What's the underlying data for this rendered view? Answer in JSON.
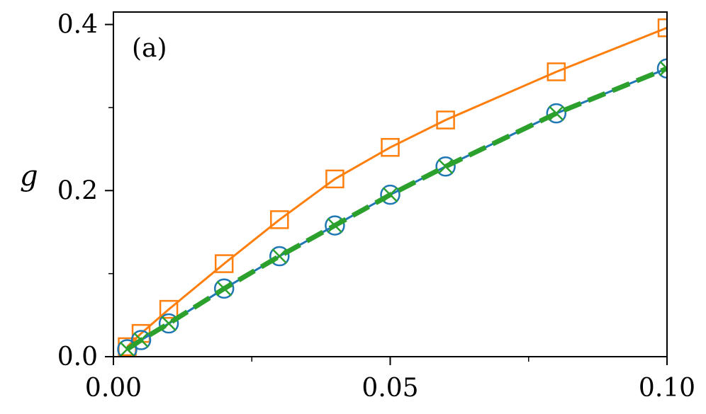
{
  "chart_data": {
    "type": "line",
    "panel_label": "(a)",
    "xlabel": "",
    "ylabel": "g",
    "xlim": [
      0.0,
      0.1
    ],
    "ylim": [
      0.0,
      0.415
    ],
    "xticks": [
      {
        "value": 0.0,
        "label": "0.00"
      },
      {
        "value": 0.05,
        "label": "0.05"
      },
      {
        "value": 0.1,
        "label": "0.10"
      }
    ],
    "xminor": [
      0.025,
      0.075
    ],
    "yticks": [
      {
        "value": 0.0,
        "label": "0.0"
      },
      {
        "value": 0.2,
        "label": "0.2"
      },
      {
        "value": 0.4,
        "label": "0.4"
      }
    ],
    "yminor": [
      0.1,
      0.3
    ],
    "grid": false,
    "series": [
      {
        "color": "#ff7f0e",
        "line": "solid",
        "marker": "square",
        "x": [
          0.0025,
          0.005,
          0.01,
          0.02,
          0.03,
          0.04,
          0.05,
          0.06,
          0.08,
          0.1
        ],
        "y": [
          0.012,
          0.028,
          0.057,
          0.112,
          0.165,
          0.214,
          0.252,
          0.285,
          0.343,
          0.396
        ]
      },
      {
        "color": "#1f77b4",
        "line": "solid",
        "marker": "circle",
        "x": [
          0.0025,
          0.005,
          0.01,
          0.02,
          0.03,
          0.04,
          0.05,
          0.06,
          0.08,
          0.1
        ],
        "y": [
          0.009,
          0.02,
          0.04,
          0.082,
          0.121,
          0.158,
          0.195,
          0.229,
          0.293,
          0.347
        ]
      },
      {
        "color": "#2ca02c",
        "line": "dashed",
        "marker": "x",
        "x": [
          0.0025,
          0.005,
          0.01,
          0.02,
          0.03,
          0.04,
          0.05,
          0.06,
          0.08,
          0.1
        ],
        "y": [
          0.009,
          0.02,
          0.04,
          0.082,
          0.121,
          0.158,
          0.195,
          0.229,
          0.293,
          0.347
        ]
      }
    ]
  }
}
